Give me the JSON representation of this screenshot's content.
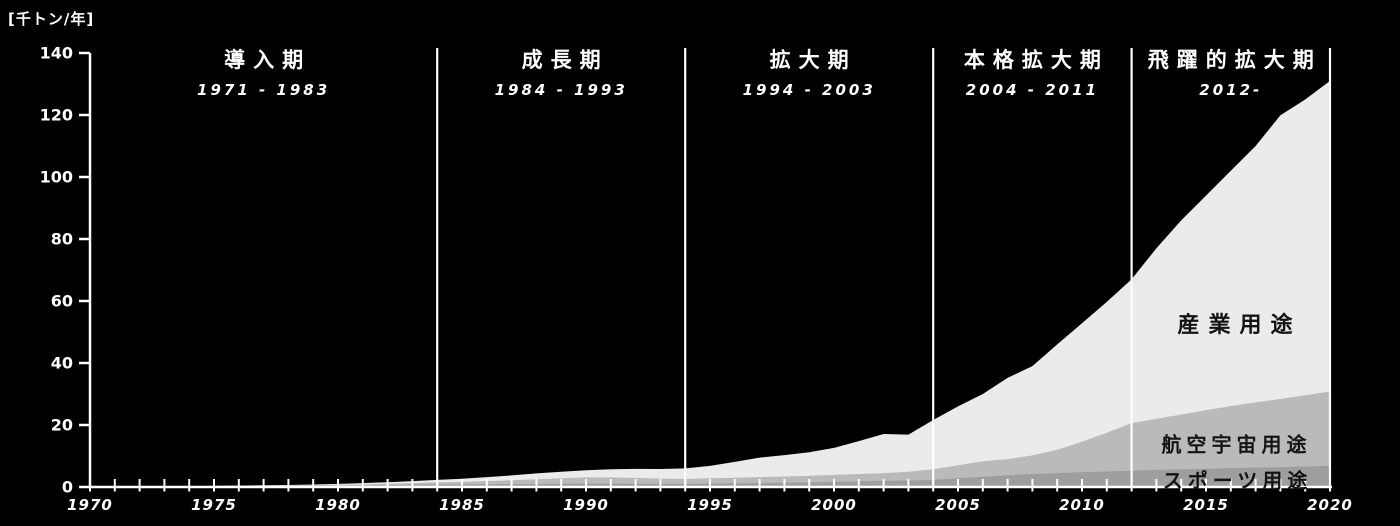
{
  "unit_label": "[千トン/年]",
  "colors": {
    "background": "#000000",
    "axis": "#ffffff",
    "period_text": "#ffffff",
    "area_label_text": "#141414",
    "sports": "#9e9e9e",
    "aerospace": "#bababa",
    "industrial": "#ebebeb"
  },
  "periods": [
    {
      "name": "導入期",
      "range": "1971 - 1983"
    },
    {
      "name": "成長期",
      "range": "1984 - 1993"
    },
    {
      "name": "拡大期",
      "range": "1994 - 2003"
    },
    {
      "name": "本格拡大期",
      "range": "2004 - 2011"
    },
    {
      "name": "飛躍的拡大期",
      "range": "2012-"
    }
  ],
  "chart_data": {
    "type": "area",
    "stacked": true,
    "title": "",
    "ylabel": "[千トン/年]",
    "xlabel": "",
    "xlim": [
      1970,
      2020
    ],
    "ylim": [
      0,
      140
    ],
    "yticks": [
      0,
      20,
      40,
      60,
      80,
      100,
      120,
      140
    ],
    "xticks": [
      1970,
      1975,
      1980,
      1985,
      1990,
      1995,
      2000,
      2005,
      2010,
      2015,
      2020
    ],
    "minor_xtick_step": 1,
    "grid": false,
    "legend_position": "labels-inside-areas",
    "divider_years": [
      1984,
      1994,
      2004,
      2012,
      2020
    ],
    "x": [
      1970,
      1971,
      1972,
      1973,
      1974,
      1975,
      1976,
      1977,
      1978,
      1979,
      1980,
      1981,
      1982,
      1983,
      1984,
      1985,
      1986,
      1987,
      1988,
      1989,
      1990,
      1991,
      1992,
      1993,
      1994,
      1995,
      1996,
      1997,
      1998,
      1999,
      2000,
      2001,
      2002,
      2003,
      2004,
      2005,
      2006,
      2007,
      2008,
      2009,
      2010,
      2011,
      2012,
      2013,
      2014,
      2015,
      2016,
      2017,
      2018,
      2019,
      2020
    ],
    "series": [
      {
        "name": "スポーツ用途",
        "key": "sports",
        "color": "#9e9e9e",
        "values": [
          0,
          0.05,
          0.1,
          0.1,
          0.15,
          0.2,
          0.25,
          0.3,
          0.35,
          0.4,
          0.45,
          0.5,
          0.6,
          0.7,
          0.8,
          0.85,
          0.9,
          0.95,
          1.0,
          1.05,
          1.1,
          1.1,
          1.05,
          1.0,
          1.0,
          1.1,
          1.2,
          1.3,
          1.4,
          1.5,
          1.6,
          1.8,
          2.0,
          2.1,
          2.3,
          2.8,
          3.3,
          3.8,
          4.2,
          4.5,
          4.8,
          5.0,
          5.3,
          5.5,
          5.7,
          5.9,
          6.1,
          6.3,
          6.4,
          6.6,
          6.8
        ]
      },
      {
        "name": "航空宇宙用途",
        "key": "aerospace",
        "color": "#bababa",
        "values": [
          0,
          0,
          0.05,
          0.05,
          0.1,
          0.1,
          0.15,
          0.15,
          0.2,
          0.25,
          0.3,
          0.35,
          0.45,
          0.55,
          0.7,
          0.8,
          1.0,
          1.2,
          1.5,
          1.8,
          2.0,
          2.0,
          1.9,
          1.7,
          1.6,
          1.7,
          1.8,
          1.9,
          2.0,
          2.1,
          2.3,
          2.4,
          2.5,
          2.8,
          3.4,
          4.2,
          5.0,
          5.2,
          6.0,
          7.5,
          9.8,
          12.5,
          15.3,
          16.5,
          17.7,
          18.9,
          20.0,
          21.0,
          22.0,
          23.0,
          24.0
        ]
      },
      {
        "name": "産業用途",
        "key": "industrial",
        "color": "#ebebeb",
        "values": [
          0,
          0,
          0,
          0,
          0,
          0.05,
          0.05,
          0.1,
          0.1,
          0.15,
          0.25,
          0.4,
          0.5,
          0.65,
          0.8,
          1.0,
          1.3,
          1.6,
          1.9,
          2.1,
          2.3,
          2.6,
          2.9,
          3.1,
          3.4,
          4.0,
          5.1,
          6.3,
          6.9,
          7.6,
          8.7,
          10.6,
          12.6,
          12.0,
          15.9,
          19.0,
          21.7,
          26.2,
          28.8,
          34.0,
          38.2,
          42.2,
          46.4,
          55.0,
          62.6,
          69.2,
          75.9,
          82.7,
          91.5,
          95.4,
          100.2
        ]
      }
    ]
  }
}
